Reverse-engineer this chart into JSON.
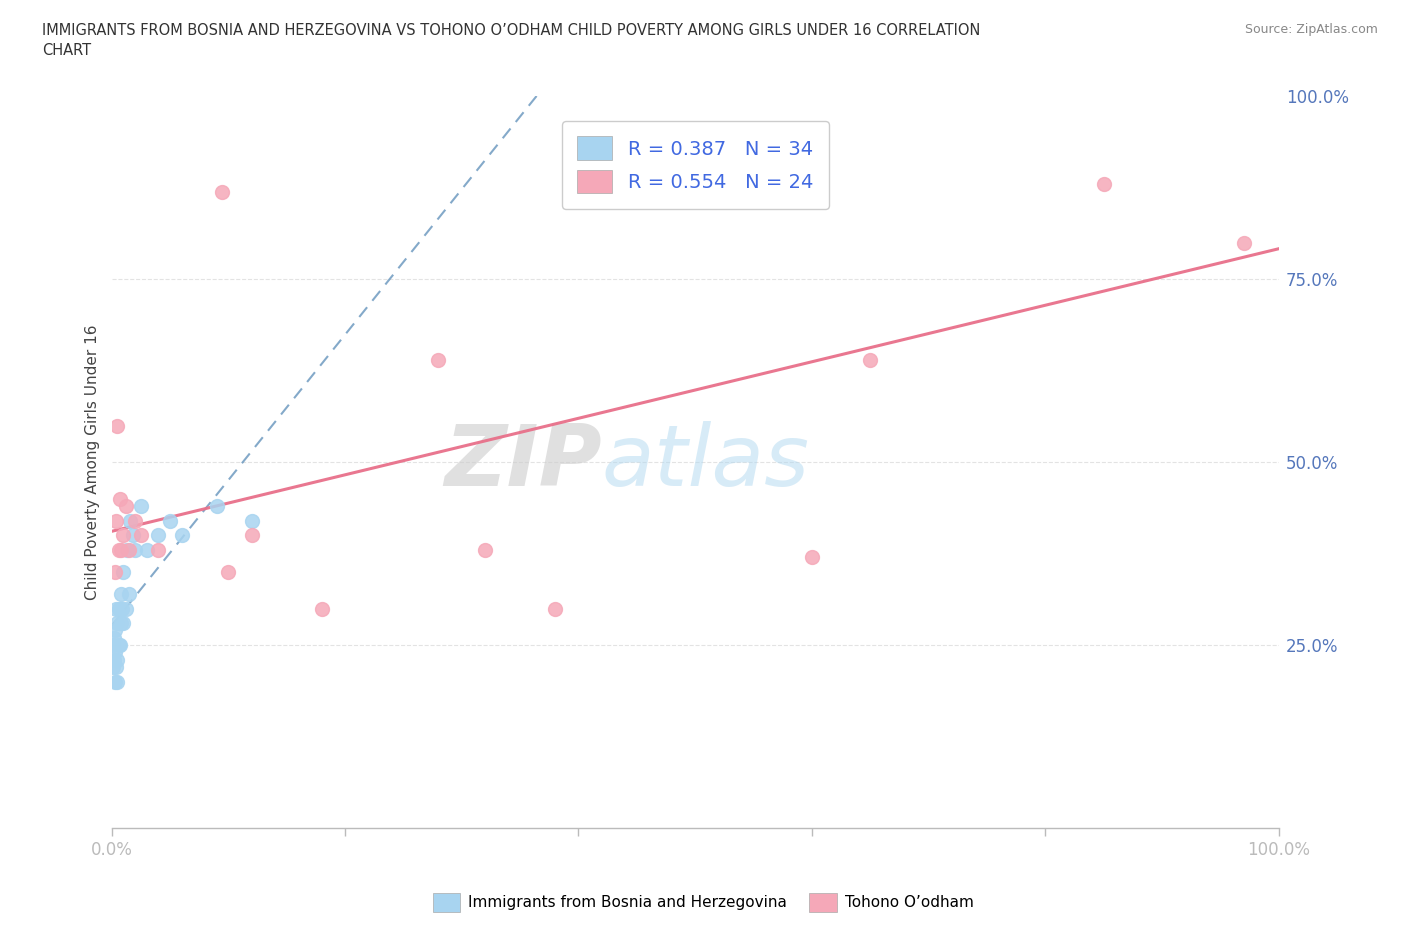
{
  "title": "IMMIGRANTS FROM BOSNIA AND HERZEGOVINA VS TOHONO O’ODHAM CHILD POVERTY AMONG GIRLS UNDER 16 CORRELATION\nCHART",
  "source": "Source: ZipAtlas.com",
  "ylabel": "Child Poverty Among Girls Under 16",
  "watermark_zip": "ZIP",
  "watermark_atlas": "atlas",
  "blue_R": 0.387,
  "blue_N": 34,
  "pink_R": 0.554,
  "pink_N": 24,
  "blue_color": "#A8D4F0",
  "pink_color": "#F5A8B8",
  "blue_line_color": "#5B8DB8",
  "pink_line_color": "#E8708A",
  "blue_scatter_x": [
    0.001,
    0.001,
    0.002,
    0.002,
    0.003,
    0.003,
    0.003,
    0.004,
    0.004,
    0.005,
    0.005,
    0.005,
    0.006,
    0.006,
    0.007,
    0.007,
    0.008,
    0.008,
    0.009,
    0.01,
    0.01,
    0.012,
    0.013,
    0.015,
    0.016,
    0.018,
    0.02,
    0.025,
    0.03,
    0.04,
    0.05,
    0.06,
    0.09,
    0.12
  ],
  "blue_scatter_y": [
    0.22,
    0.25,
    0.23,
    0.26,
    0.2,
    0.24,
    0.27,
    0.22,
    0.3,
    0.2,
    0.23,
    0.28,
    0.25,
    0.3,
    0.25,
    0.3,
    0.28,
    0.32,
    0.3,
    0.28,
    0.35,
    0.3,
    0.38,
    0.32,
    0.42,
    0.4,
    0.38,
    0.44,
    0.38,
    0.4,
    0.42,
    0.4,
    0.44,
    0.42
  ],
  "pink_scatter_x": [
    0.003,
    0.004,
    0.005,
    0.006,
    0.007,
    0.008,
    0.01,
    0.012,
    0.015,
    0.02,
    0.025,
    0.04,
    0.095,
    0.1,
    0.12,
    0.18,
    0.28,
    0.32,
    0.38,
    0.55,
    0.6,
    0.65,
    0.85,
    0.97
  ],
  "pink_scatter_y": [
    0.35,
    0.42,
    0.55,
    0.38,
    0.45,
    0.38,
    0.4,
    0.44,
    0.38,
    0.42,
    0.4,
    0.38,
    0.87,
    0.35,
    0.4,
    0.3,
    0.64,
    0.38,
    0.3,
    0.88,
    0.37,
    0.64,
    0.88,
    0.8
  ],
  "xlim": [
    0.0,
    1.0
  ],
  "ylim": [
    0.0,
    1.0
  ],
  "grid_color": "#DDDDDD",
  "background_color": "#FFFFFF"
}
